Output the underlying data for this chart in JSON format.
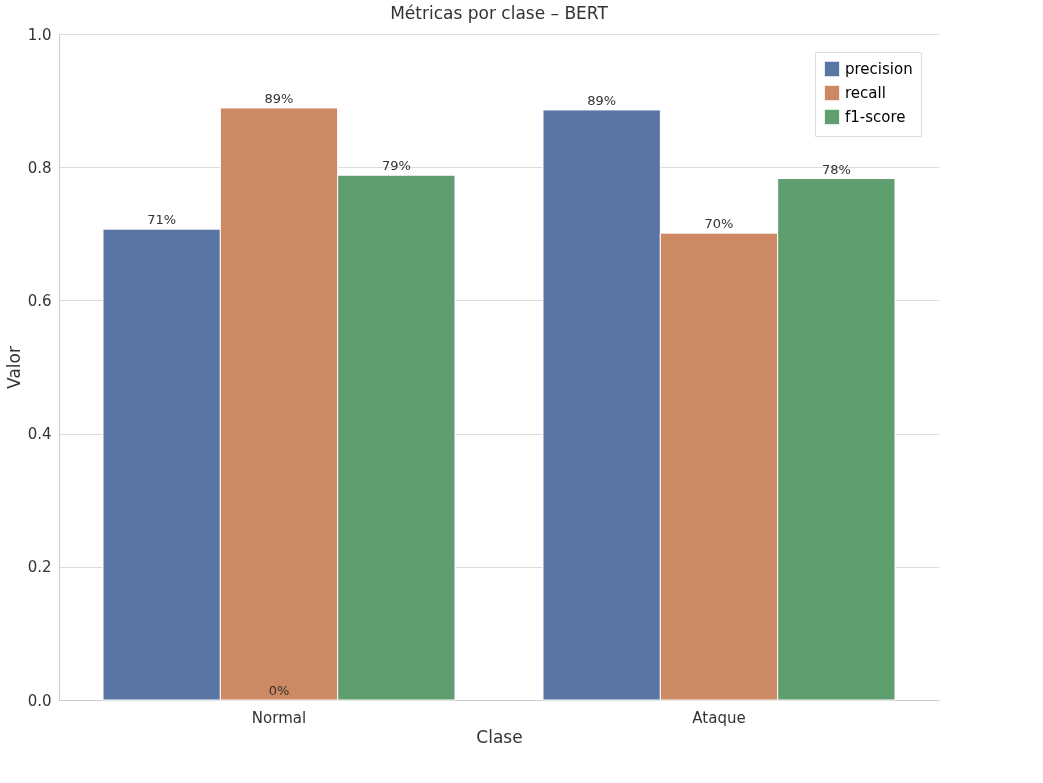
{
  "chart_data": {
    "type": "bar",
    "title": "Métricas por clase – BERT",
    "xlabel": "Clase",
    "ylabel": "Valor",
    "categories": [
      "Normal",
      "Ataque"
    ],
    "series": [
      {
        "name": "precision",
        "color": "#5875a4",
        "values": [
          0.707,
          0.886
        ],
        "value_labels": [
          "71%",
          "89%"
        ]
      },
      {
        "name": "recall",
        "color": "#cc8963",
        "values": [
          0.889,
          0.701
        ],
        "value_labels": [
          "89%",
          "70%"
        ]
      },
      {
        "name": "f1-score",
        "color": "#5f9e6e",
        "values": [
          0.788,
          0.783
        ],
        "value_labels": [
          "79%",
          "78%"
        ]
      }
    ],
    "ylim": [
      0,
      1.0
    ],
    "yticks": [
      {
        "value": 0,
        "label": "0.0"
      },
      {
        "value": 0.2,
        "label": "0.2"
      },
      {
        "value": 0.4,
        "label": "0.4"
      },
      {
        "value": 0.6,
        "label": "0.6"
      },
      {
        "value": 0.8,
        "label": "0.8"
      },
      {
        "value": 1.0,
        "label": "1.0"
      }
    ],
    "grid": "y",
    "legend": "top right",
    "annotations": [
      {
        "text": "0%",
        "x": "Normal",
        "y": 0
      }
    ]
  }
}
